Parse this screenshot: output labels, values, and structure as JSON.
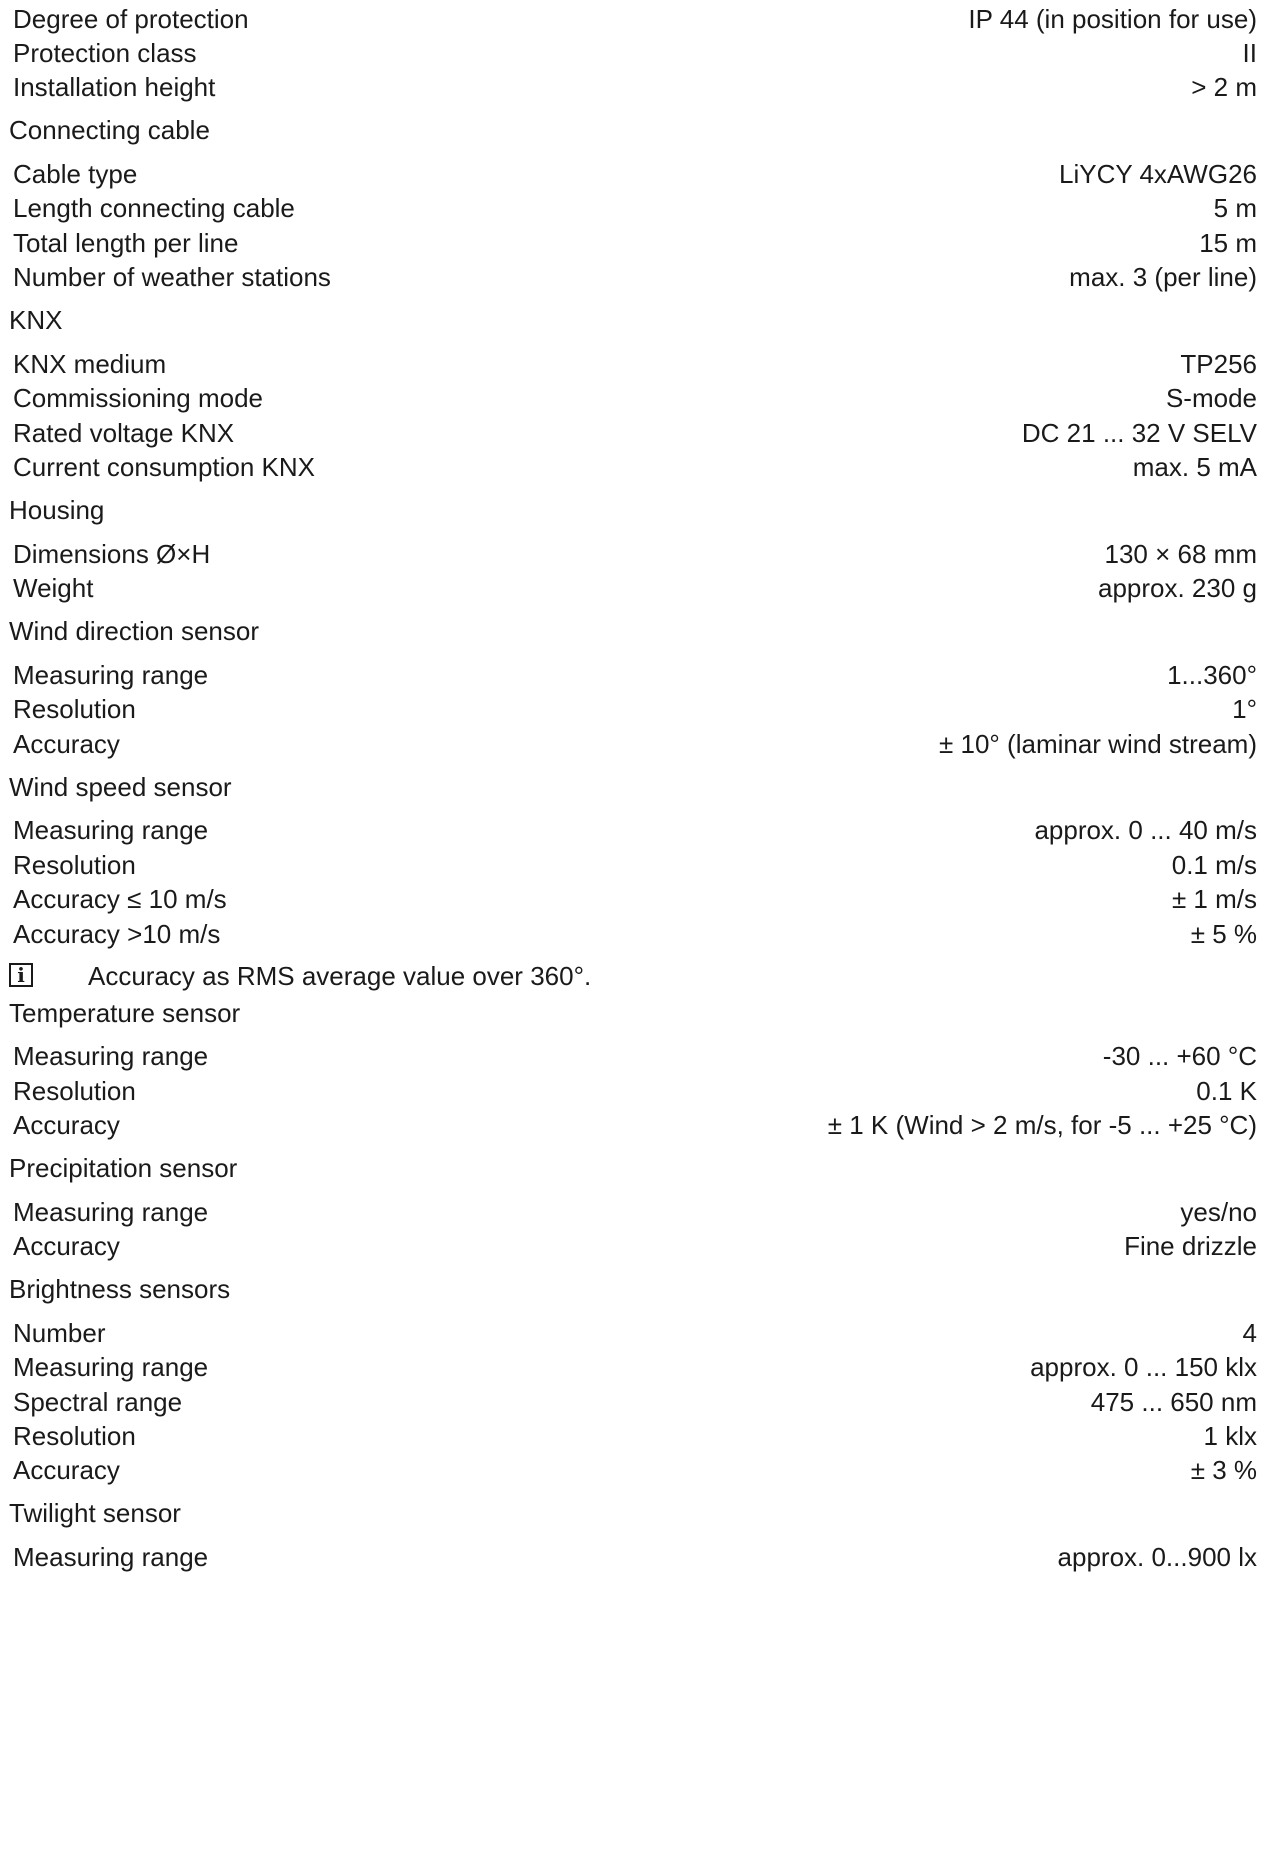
{
  "rows": [
    {
      "type": "spec",
      "label": "Degree of protection",
      "value": "IP 44 (in position for use)"
    },
    {
      "type": "spec",
      "label": "Protection class",
      "value": "II"
    },
    {
      "type": "spec",
      "label": "Installation height",
      "value": "> 2 m"
    },
    {
      "type": "heading",
      "text": "Connecting cable"
    },
    {
      "type": "spec",
      "label": "Cable type",
      "value": "LiYCY 4xAWG26"
    },
    {
      "type": "spec",
      "label": "Length connecting cable",
      "value": "5 m"
    },
    {
      "type": "spec",
      "label": "Total length per line",
      "value": "15 m"
    },
    {
      "type": "spec",
      "label": "Number of weather stations",
      "value": "max. 3 (per line)"
    },
    {
      "type": "heading",
      "text": "KNX"
    },
    {
      "type": "spec",
      "label": "KNX medium",
      "value": "TP256"
    },
    {
      "type": "spec",
      "label": "Commissioning mode",
      "value": "S-mode"
    },
    {
      "type": "spec",
      "label": "Rated voltage KNX",
      "value": "DC 21 ... 32 V SELV"
    },
    {
      "type": "spec",
      "label": "Current consumption KNX",
      "value": "max. 5 mA"
    },
    {
      "type": "heading",
      "text": "Housing"
    },
    {
      "type": "spec",
      "label": "Dimensions Ø×H",
      "value": "130 × 68 mm"
    },
    {
      "type": "spec",
      "label": "Weight",
      "value": "approx. 230 g"
    },
    {
      "type": "heading",
      "text": "Wind direction sensor"
    },
    {
      "type": "spec",
      "label": "Measuring range",
      "value": "1...360°"
    },
    {
      "type": "spec",
      "label": "Resolution",
      "value": "1°"
    },
    {
      "type": "spec",
      "label": "Accuracy",
      "value": "± 10° (laminar wind stream)"
    },
    {
      "type": "heading",
      "text": "Wind speed sensor"
    },
    {
      "type": "spec",
      "label": "Measuring range",
      "value": "approx. 0 ... 40 m/s"
    },
    {
      "type": "spec",
      "label": "Resolution",
      "value": "0.1 m/s"
    },
    {
      "type": "spec",
      "label": "Accuracy ≤ 10 m/s",
      "value": "± 1 m/s"
    },
    {
      "type": "spec",
      "label": "Accuracy >10 m/s",
      "value": "± 5 %"
    },
    {
      "type": "note",
      "icon": "info-icon",
      "icon_glyph": "i",
      "text": "Accuracy as RMS average value over 360°."
    },
    {
      "type": "heading",
      "text": "Temperature sensor"
    },
    {
      "type": "spec",
      "label": "Measuring range",
      "value": "-30 ... +60 °C"
    },
    {
      "type": "spec",
      "label": "Resolution",
      "value": "0.1 K"
    },
    {
      "type": "spec",
      "label": "Accuracy",
      "value": "± 1 K (Wind > 2 m/s, for -5 ... +25 °C)"
    },
    {
      "type": "heading",
      "text": "Precipitation sensor"
    },
    {
      "type": "spec",
      "label": "Measuring range",
      "value": "yes/no"
    },
    {
      "type": "spec",
      "label": "Accuracy",
      "value": "Fine drizzle"
    },
    {
      "type": "heading",
      "text": "Brightness sensors"
    },
    {
      "type": "spec",
      "label": "Number",
      "value": "4"
    },
    {
      "type": "spec",
      "label": "Measuring range",
      "value": "approx. 0 ... 150 klx"
    },
    {
      "type": "spec",
      "label": "Spectral range",
      "value": "475 ... 650 nm"
    },
    {
      "type": "spec",
      "label": "Resolution",
      "value": "1 klx"
    },
    {
      "type": "spec",
      "label": "Accuracy",
      "value": "± 3 %"
    },
    {
      "type": "heading",
      "text": "Twilight sensor"
    },
    {
      "type": "spec",
      "label": "Measuring range",
      "value": "approx. 0...900 lx"
    }
  ]
}
